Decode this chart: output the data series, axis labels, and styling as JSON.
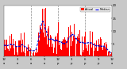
{
  "bg_color": "#c8c8c8",
  "plot_bg": "#ffffff",
  "bar_color": "#ff0000",
  "line_color": "#0000cc",
  "n_points": 1440,
  "ylim": [
    0,
    20
  ],
  "ytick_vals": [
    5,
    10,
    15,
    20
  ],
  "vline_positions": [
    360,
    720,
    1080
  ],
  "vline_color": "#888888",
  "legend_actual_color": "#ff2200",
  "legend_median_color": "#0000ff",
  "title_fontsize": 3.5,
  "tick_fontsize": 2.8
}
